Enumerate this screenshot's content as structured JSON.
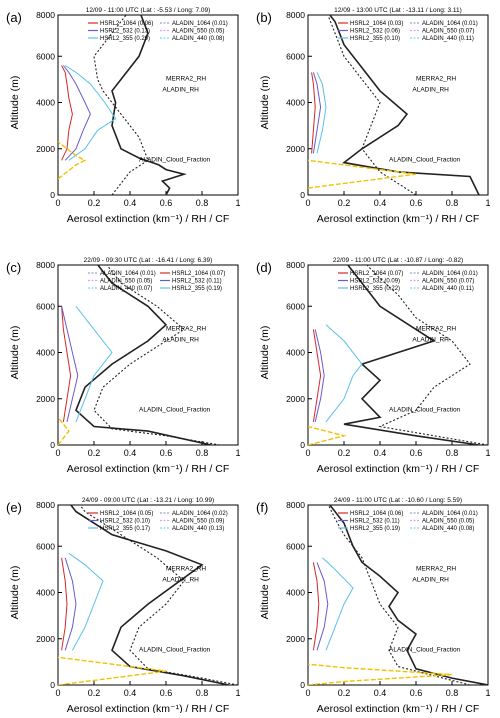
{
  "figure": {
    "axis_labels": {
      "x": "Aerosol extinction (km⁻¹) / RH / CF",
      "y": "Altitude (m)"
    },
    "x_ticks": [
      "0",
      "0.2",
      "0.4",
      "0.6",
      "0.8",
      "1"
    ],
    "y_ticks": [
      "0",
      "2000",
      "4000",
      "6000",
      "8000"
    ]
  },
  "colors": {
    "hsrl_1064": "#d62728",
    "hsrl_532": "#6a5acd",
    "hsrl_355": "#5bc0eb",
    "aladin_1064": "#a0a0c8",
    "aladin_550": "#d9a0ff",
    "aladin_440": "#7fd4ff",
    "merra2_rh": "#222222",
    "aladin_rh": "#222222",
    "cloud_fraction": "#f2c200"
  },
  "chart_data": [
    {
      "type": "line",
      "panel": "(a)",
      "title": "12/09 - 11:00 UTC (Lat : -5.53 / Long: 7.09)",
      "xlim": [
        0,
        1
      ],
      "ylim": [
        0,
        8000
      ],
      "legend_items": [
        "HSRL2_1064 (0.06)",
        "HSRL2_532 (0.13)",
        "HSRL2_355 (0.20)",
        "ALADIN_1064 (0.01)",
        "ALADIN_550 (0.05)",
        "ALADIN_440 (0.08)"
      ],
      "annotations": [
        "MERRA2_RH",
        "ALADIN_RH",
        "ALADIN_Cloud_Fraction"
      ],
      "series": [
        {
          "name": "MERRA2_RH",
          "x": [
            0.6,
            0.62,
            0.58,
            0.7,
            0.6,
            0.56,
            0.45,
            0.35,
            0.3,
            0.32,
            0.3,
            0.35,
            0.45,
            0.5,
            0.45
          ],
          "y": [
            0,
            300,
            600,
            900,
            1100,
            1300,
            1600,
            2000,
            3000,
            4000,
            4500,
            5000,
            6000,
            7000,
            8000
          ]
        },
        {
          "name": "ALADIN_RH",
          "x": [
            0.3,
            0.35,
            0.4,
            0.5,
            0.45,
            0.35,
            0.3,
            0.25,
            0.22,
            0.2,
            0.25,
            0.3,
            0.4
          ],
          "y": [
            0,
            500,
            1000,
            1500,
            2500,
            3500,
            4000,
            4500,
            5000,
            6000,
            6500,
            7000,
            8000
          ]
        },
        {
          "name": "HSRL2_1064",
          "x": [
            0.02,
            0.05,
            0.06,
            0.08,
            0.06,
            0.05,
            0.04,
            0.02
          ],
          "y": [
            1500,
            2000,
            2800,
            3500,
            4200,
            4800,
            5300,
            5600
          ]
        },
        {
          "name": "HSRL2_532",
          "x": [
            0.04,
            0.1,
            0.14,
            0.18,
            0.15,
            0.1,
            0.06,
            0.03
          ],
          "y": [
            1500,
            2000,
            2800,
            3500,
            4000,
            4800,
            5300,
            5600
          ]
        },
        {
          "name": "HSRL2_355",
          "x": [
            0.06,
            0.15,
            0.22,
            0.32,
            0.26,
            0.18,
            0.1,
            0.04
          ],
          "y": [
            1500,
            2000,
            2800,
            3300,
            4000,
            4800,
            5300,
            5600
          ]
        },
        {
          "name": "ALADIN_Cloud_Fraction",
          "x": [
            0,
            0.05,
            0.1,
            0.15,
            0.1,
            0.05,
            0
          ],
          "y": [
            700,
            1000,
            1300,
            1500,
            1700,
            2000,
            2300
          ]
        }
      ]
    },
    {
      "type": "line",
      "panel": "(b)",
      "title": "12/09 - 13:00 UTC (Lat : -13.11 / Long: 3.11)",
      "xlim": [
        0,
        1
      ],
      "ylim": [
        0,
        8000
      ],
      "legend_items": [
        "HSRL2_1064 (0.03)",
        "HSRL2_532 (0.06)",
        "HSRL2_355 (0.10)",
        "ALADIN_1064 (0.01)",
        "ALADIN_550 (0.07)",
        "ALADIN_440 (0.11)"
      ],
      "annotations": [
        "MERRA2_RH",
        "ALADIN_RH",
        "ALADIN_Cloud_Fraction"
      ],
      "series": [
        {
          "name": "MERRA2_RH",
          "x": [
            0.95,
            0.9,
            0.5,
            0.2,
            0.3,
            0.5,
            0.55,
            0.4,
            0.3,
            0.2,
            0.15,
            0.1
          ],
          "y": [
            0,
            800,
            1000,
            1400,
            2000,
            3000,
            3500,
            4500,
            5500,
            6500,
            7500,
            8000
          ]
        },
        {
          "name": "ALADIN_RH",
          "x": [
            0.6,
            0.5,
            0.4,
            0.3,
            0.35,
            0.4,
            0.3,
            0.2,
            0.15,
            0.1
          ],
          "y": [
            0,
            500,
            1000,
            2000,
            3000,
            4000,
            5000,
            6000,
            7000,
            8000
          ]
        },
        {
          "name": "HSRL2_1064",
          "x": [
            0.02,
            0.03,
            0.04,
            0.03,
            0.02
          ],
          "y": [
            1800,
            2800,
            3800,
            4800,
            5300
          ]
        },
        {
          "name": "HSRL2_532",
          "x": [
            0.03,
            0.05,
            0.07,
            0.05,
            0.03
          ],
          "y": [
            1800,
            2800,
            3800,
            4800,
            5300
          ]
        },
        {
          "name": "HSRL2_355",
          "x": [
            0.05,
            0.08,
            0.1,
            0.08,
            0.05
          ],
          "y": [
            1800,
            2800,
            3800,
            4800,
            5300
          ]
        },
        {
          "name": "ALADIN_Cloud_Fraction",
          "x": [
            0,
            0.2,
            0.4,
            0.6,
            0.4,
            0.2,
            0
          ],
          "y": [
            300,
            500,
            700,
            900,
            1100,
            1300,
            1500
          ]
        }
      ]
    },
    {
      "type": "line",
      "panel": "(c)",
      "title": "22/09 - 09:30 UTC (Lat : -16.41 / Long: 6.39)",
      "xlim": [
        0,
        1
      ],
      "ylim": [
        0,
        8000
      ],
      "legend_items": [
        "ALADIN_1064 (0.01)",
        "ALADIN_550 (0.05)",
        "ALADIN_440 (0.07)",
        "HSRL2_1064 (0.07)",
        "HSRL2_532 (0.11)",
        "HSRL2_355 (0.19)"
      ],
      "annotations": [
        "MERRA2_RH",
        "ALADIN_RH",
        "ALADIN_Cloud_Fraction"
      ],
      "series": [
        {
          "name": "MERRA2_RH",
          "x": [
            0.85,
            0.5,
            0.2,
            0.1,
            0.15,
            0.3,
            0.5,
            0.6,
            0.5,
            0.3,
            0.2
          ],
          "y": [
            0,
            600,
            800,
            1500,
            2500,
            3500,
            4500,
            5200,
            6000,
            7000,
            8000
          ]
        },
        {
          "name": "ALADIN_RH",
          "x": [
            0.9,
            0.6,
            0.3,
            0.2,
            0.25,
            0.4,
            0.6,
            0.7,
            0.55,
            0.35,
            0.25
          ],
          "y": [
            0,
            400,
            700,
            1500,
            2500,
            3500,
            4500,
            5000,
            6000,
            7000,
            8000
          ]
        },
        {
          "name": "HSRL2_1064",
          "x": [
            0.03,
            0.05,
            0.07,
            0.05,
            0.03,
            0.02
          ],
          "y": [
            1000,
            2000,
            3000,
            4000,
            5000,
            6000
          ]
        },
        {
          "name": "HSRL2_532",
          "x": [
            0.05,
            0.08,
            0.11,
            0.08,
            0.05,
            0.02
          ],
          "y": [
            1000,
            2000,
            3000,
            4000,
            5000,
            6000
          ]
        },
        {
          "name": "HSRL2_355",
          "x": [
            0.1,
            0.15,
            0.2,
            0.3,
            0.2,
            0.1
          ],
          "y": [
            1000,
            2000,
            3000,
            4000,
            5000,
            6000
          ]
        },
        {
          "name": "ALADIN_Cloud_Fraction",
          "x": [
            0,
            0.03,
            0.06,
            0.03,
            0
          ],
          "y": [
            0,
            300,
            600,
            900,
            1200
          ]
        }
      ]
    },
    {
      "type": "line",
      "panel": "(d)",
      "title": "22/09 - 11:00 UTC (Lat : -10.87 / Long: -0.82)",
      "xlim": [
        0,
        1
      ],
      "ylim": [
        0,
        8000
      ],
      "legend_items": [
        "HSRL2_1064 (0.07)",
        "HSRL2_532 (0.09)",
        "HSRL2_355 (0.22)",
        "ALADIN_1064 (0.01)",
        "ALADIN_550 (0.07)",
        "ALADIN_440 (0.11)"
      ],
      "annotations": [
        "MERRA2_RH",
        "ALADIN_RH",
        "ALADIN_Cloud_Fraction"
      ],
      "series": [
        {
          "name": "MERRA2_RH",
          "x": [
            0.95,
            0.6,
            0.2,
            0.4,
            0.3,
            0.4,
            0.3,
            0.5,
            0.7,
            0.6,
            0.4,
            0.3,
            0.2
          ],
          "y": [
            0,
            400,
            900,
            1200,
            2000,
            2800,
            3500,
            4000,
            4500,
            5000,
            6000,
            7000,
            8000
          ]
        },
        {
          "name": "ALADIN_RH",
          "x": [
            1.0,
            0.7,
            0.4,
            0.6,
            0.7,
            0.9,
            0.8,
            0.6,
            0.5,
            0.4,
            0.3
          ],
          "y": [
            0,
            400,
            800,
            1500,
            2500,
            3500,
            4500,
            5500,
            6500,
            7200,
            8000
          ]
        },
        {
          "name": "HSRL2_1064",
          "x": [
            0.03,
            0.05,
            0.07,
            0.05,
            0.03
          ],
          "y": [
            1000,
            2000,
            3000,
            4000,
            5000
          ]
        },
        {
          "name": "HSRL2_532",
          "x": [
            0.04,
            0.07,
            0.09,
            0.07,
            0.04
          ],
          "y": [
            1000,
            2000,
            3000,
            4000,
            5000
          ]
        },
        {
          "name": "HSRL2_355",
          "x": [
            0.1,
            0.2,
            0.25,
            0.3,
            0.2,
            0.1
          ],
          "y": [
            1000,
            2000,
            3000,
            3500,
            4500,
            5200
          ]
        },
        {
          "name": "ALADIN_Cloud_Fraction",
          "x": [
            0,
            0.1,
            0.2,
            0.1,
            0
          ],
          "y": [
            0,
            200,
            400,
            600,
            800
          ]
        }
      ]
    },
    {
      "type": "line",
      "panel": "(e)",
      "title": "24/09 - 09:00 UTC (Lat : -13.21 / Long: 10.99)",
      "xlim": [
        0,
        1
      ],
      "ylim": [
        0,
        8000
      ],
      "legend_items": [
        "HSRL2_1064 (0.05)",
        "HSRL2_532 (0.10)",
        "HSRL2_355 (0.17)",
        "ALADIN_1064 (0.02)",
        "ALADIN_550 (0.09)",
        "ALADIN_440 (0.13)"
      ],
      "annotations": [
        "MERRA2_RH",
        "ALADIN_RH",
        "ALADIN_Cloud_Fraction"
      ],
      "series": [
        {
          "name": "MERRA2_RH",
          "x": [
            0.95,
            0.7,
            0.4,
            0.3,
            0.35,
            0.5,
            0.8,
            0.6,
            0.3,
            0.1,
            0.05
          ],
          "y": [
            0,
            400,
            800,
            1500,
            2500,
            3500,
            5200,
            5800,
            6500,
            7500,
            8000
          ]
        },
        {
          "name": "ALADIN_RH",
          "x": [
            1.0,
            0.8,
            0.5,
            0.4,
            0.45,
            0.6,
            0.7,
            0.55,
            0.35,
            0.15,
            0.1
          ],
          "y": [
            0,
            300,
            700,
            1500,
            2500,
            3500,
            4500,
            5500,
            6500,
            7500,
            8000
          ]
        },
        {
          "name": "HSRL2_1064",
          "x": [
            0.02,
            0.04,
            0.05,
            0.04,
            0.02
          ],
          "y": [
            1500,
            2500,
            3500,
            4500,
            5500
          ]
        },
        {
          "name": "HSRL2_532",
          "x": [
            0.04,
            0.08,
            0.1,
            0.08,
            0.04
          ],
          "y": [
            1500,
            2500,
            3500,
            4500,
            5500
          ]
        },
        {
          "name": "HSRL2_355",
          "x": [
            0.08,
            0.15,
            0.2,
            0.25,
            0.15,
            0.06
          ],
          "y": [
            1500,
            2500,
            3500,
            4500,
            5200,
            5700
          ]
        },
        {
          "name": "ALADIN_Cloud_Fraction",
          "x": [
            0,
            0.2,
            0.4,
            0.6,
            0.4,
            0.2,
            0
          ],
          "y": [
            0,
            200,
            400,
            600,
            800,
            1000,
            1200
          ]
        }
      ]
    },
    {
      "type": "line",
      "panel": "(f)",
      "title": "24/09 - 11:00 UTC (Lat : -10.60 / Long: 5.59)",
      "xlim": [
        0,
        1
      ],
      "ylim": [
        0,
        8000
      ],
      "legend_items": [
        "HSRL2_1064 (0.06)",
        "HSRL2_532 (0.11)",
        "HSRL2_355 (0.19)",
        "ALADIN_1064 (0.01)",
        "ALADIN_550 (0.05)",
        "ALADIN_440 (0.08)"
      ],
      "annotations": [
        "MERRA2_RH",
        "ALADIN_RH",
        "ALADIN_Cloud_Fraction"
      ],
      "series": [
        {
          "name": "MERRA2_RH",
          "x": [
            1.0,
            0.8,
            0.6,
            0.55,
            0.6,
            0.5,
            0.45,
            0.5,
            0.4,
            0.3,
            0.25,
            0.2,
            0.1
          ],
          "y": [
            0,
            300,
            700,
            1500,
            2200,
            2800,
            3400,
            4000,
            4700,
            5300,
            6000,
            7000,
            8000
          ]
        },
        {
          "name": "ALADIN_RH",
          "x": [
            0.9,
            0.7,
            0.5,
            0.45,
            0.5,
            0.4,
            0.35,
            0.3,
            0.2,
            0.15,
            0.1
          ],
          "y": [
            0,
            400,
            800,
            1500,
            2500,
            3500,
            4500,
            5500,
            6500,
            7200,
            8000
          ]
        },
        {
          "name": "HSRL2_1064",
          "x": [
            0.03,
            0.05,
            0.06,
            0.05,
            0.03
          ],
          "y": [
            1500,
            2500,
            3500,
            4500,
            5300
          ]
        },
        {
          "name": "HSRL2_532",
          "x": [
            0.05,
            0.09,
            0.11,
            0.09,
            0.05
          ],
          "y": [
            1500,
            2500,
            3500,
            4500,
            5300
          ]
        },
        {
          "name": "HSRL2_355",
          "x": [
            0.1,
            0.15,
            0.2,
            0.25,
            0.15,
            0.08
          ],
          "y": [
            1500,
            2500,
            3500,
            4200,
            5000,
            5500
          ]
        },
        {
          "name": "ALADIN_Cloud_Fraction",
          "x": [
            0,
            0.2,
            0.5,
            0.8,
            0.5,
            0.2,
            0
          ],
          "y": [
            0,
            150,
            300,
            450,
            600,
            750,
            900
          ]
        }
      ]
    }
  ]
}
